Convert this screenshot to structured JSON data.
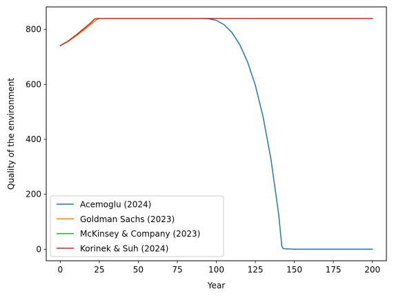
{
  "chart_data": {
    "type": "line",
    "xlabel": "Year",
    "ylabel": "Quality of the environment",
    "xlim": [
      -9,
      209
    ],
    "ylim": [
      -42,
      882
    ],
    "xticks": [
      0,
      25,
      50,
      75,
      100,
      125,
      150,
      175,
      200
    ],
    "yticks": [
      0,
      200,
      400,
      600,
      800
    ],
    "grid": false,
    "legend_position": "lower left",
    "series": [
      {
        "name": "Acemoglu (2024)",
        "color": "#1f77b4",
        "points": [
          [
            0,
            741
          ],
          [
            5,
            757
          ],
          [
            10,
            779
          ],
          [
            15,
            802
          ],
          [
            20,
            826
          ],
          [
            22,
            838
          ],
          [
            25,
            840
          ],
          [
            50,
            840
          ],
          [
            75,
            840
          ],
          [
            90,
            840
          ],
          [
            95,
            839
          ],
          [
            100,
            833
          ],
          [
            105,
            817
          ],
          [
            110,
            789
          ],
          [
            115,
            745
          ],
          [
            120,
            682
          ],
          [
            125,
            597
          ],
          [
            130,
            481
          ],
          [
            135,
            328
          ],
          [
            140,
            125
          ],
          [
            142,
            10
          ],
          [
            143,
            2
          ],
          [
            150,
            0
          ],
          [
            175,
            0
          ],
          [
            200,
            0
          ]
        ]
      },
      {
        "name": "Goldman Sachs (2023)",
        "color": "#ff7f0e",
        "points": [
          [
            0,
            741
          ],
          [
            5,
            756
          ],
          [
            10,
            776
          ],
          [
            15,
            797
          ],
          [
            20,
            820
          ],
          [
            24,
            838
          ],
          [
            25,
            840
          ],
          [
            50,
            840
          ],
          [
            100,
            840
          ],
          [
            150,
            840
          ],
          [
            200,
            840
          ]
        ]
      },
      {
        "name": "McKinsey & Company (2023)",
        "color": "#2ca02c",
        "points": [
          [
            0,
            741
          ],
          [
            5,
            757
          ],
          [
            10,
            779
          ],
          [
            15,
            802
          ],
          [
            20,
            826
          ],
          [
            22,
            838
          ],
          [
            25,
            840
          ],
          [
            50,
            840
          ],
          [
            100,
            840
          ],
          [
            150,
            840
          ],
          [
            200,
            840
          ]
        ]
      },
      {
        "name": "Korinek & Suh (2024)",
        "color": "#d62728",
        "points": [
          [
            0,
            741
          ],
          [
            5,
            757
          ],
          [
            10,
            779
          ],
          [
            15,
            802
          ],
          [
            20,
            826
          ],
          [
            22,
            838
          ],
          [
            25,
            840
          ],
          [
            50,
            840
          ],
          [
            100,
            840
          ],
          [
            150,
            840
          ],
          [
            200,
            840
          ]
        ]
      }
    ]
  }
}
